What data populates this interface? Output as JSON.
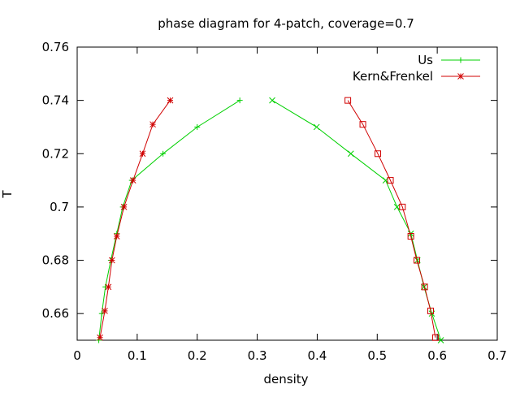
{
  "chart_data": {
    "type": "line",
    "title": "phase diagram for 4-patch, coverage=0.7",
    "xlabel": "density",
    "ylabel": "T",
    "xlim": [
      0,
      0.7
    ],
    "ylim": [
      0.65,
      0.76
    ],
    "x_ticks": [
      "0",
      "0.1",
      "0.2",
      "0.3",
      "0.4",
      "0.5",
      "0.6",
      "0.7"
    ],
    "x_tick_values": [
      0,
      0.1,
      0.2,
      0.3,
      0.4,
      0.5,
      0.6,
      0.7
    ],
    "y_ticks": [
      "0.66",
      "0.68",
      "0.7",
      "0.72",
      "0.74",
      "0.76"
    ],
    "y_tick_values": [
      0.66,
      0.68,
      0.7,
      0.72,
      0.74,
      0.76
    ],
    "grid": false,
    "legend_position": "top-right",
    "series": [
      {
        "name": "Us",
        "color": "#00d000",
        "markers": [
          {
            "symbol": "plus",
            "points": [
              [
                0.036,
                0.65
              ],
              [
                0.041,
                0.66
              ],
              [
                0.047,
                0.67
              ],
              [
                0.056,
                0.68
              ],
              [
                0.066,
                0.69
              ],
              [
                0.076,
                0.7
              ],
              [
                0.091,
                0.71
              ],
              [
                0.143,
                0.72
              ],
              [
                0.2,
                0.73
              ],
              [
                0.271,
                0.74
              ]
            ]
          },
          {
            "symbol": "cross",
            "points": [
              [
                0.325,
                0.74
              ],
              [
                0.399,
                0.73
              ],
              [
                0.456,
                0.72
              ],
              [
                0.514,
                0.71
              ],
              [
                0.533,
                0.7
              ],
              [
                0.556,
                0.69
              ],
              [
                0.567,
                0.68
              ],
              [
                0.578,
                0.67
              ],
              [
                0.591,
                0.66
              ],
              [
                0.606,
                0.65
              ]
            ]
          }
        ],
        "segments": [
          [
            [
              0.036,
              0.65
            ],
            [
              0.041,
              0.66
            ],
            [
              0.047,
              0.67
            ],
            [
              0.056,
              0.68
            ],
            [
              0.066,
              0.69
            ],
            [
              0.076,
              0.7
            ],
            [
              0.091,
              0.71
            ],
            [
              0.143,
              0.72
            ],
            [
              0.2,
              0.73
            ],
            [
              0.271,
              0.74
            ]
          ],
          [
            [
              0.325,
              0.74
            ],
            [
              0.399,
              0.73
            ],
            [
              0.456,
              0.72
            ],
            [
              0.514,
              0.71
            ],
            [
              0.533,
              0.7
            ],
            [
              0.556,
              0.69
            ],
            [
              0.567,
              0.68
            ],
            [
              0.578,
              0.67
            ],
            [
              0.591,
              0.66
            ],
            [
              0.606,
              0.65
            ]
          ]
        ]
      },
      {
        "name": "Kern&Frenkel",
        "color": "#d00000",
        "markers": [
          {
            "symbol": "star",
            "points": [
              [
                0.038,
                0.651
              ],
              [
                0.046,
                0.661
              ],
              [
                0.052,
                0.67
              ],
              [
                0.058,
                0.68
              ],
              [
                0.066,
                0.689
              ],
              [
                0.078,
                0.7
              ],
              [
                0.093,
                0.71
              ],
              [
                0.109,
                0.72
              ],
              [
                0.126,
                0.731
              ],
              [
                0.155,
                0.74
              ]
            ]
          },
          {
            "symbol": "square",
            "points": [
              [
                0.451,
                0.74
              ],
              [
                0.476,
                0.731
              ],
              [
                0.501,
                0.72
              ],
              [
                0.522,
                0.71
              ],
              [
                0.542,
                0.7
              ],
              [
                0.556,
                0.689
              ],
              [
                0.566,
                0.68
              ],
              [
                0.579,
                0.67
              ],
              [
                0.589,
                0.661
              ],
              [
                0.597,
                0.651
              ]
            ]
          }
        ],
        "segments": [
          [
            [
              0.038,
              0.651
            ],
            [
              0.046,
              0.661
            ],
            [
              0.052,
              0.67
            ],
            [
              0.058,
              0.68
            ],
            [
              0.066,
              0.689
            ],
            [
              0.078,
              0.7
            ],
            [
              0.093,
              0.71
            ],
            [
              0.109,
              0.72
            ],
            [
              0.126,
              0.731
            ],
            [
              0.155,
              0.74
            ]
          ],
          [
            [
              0.451,
              0.74
            ],
            [
              0.476,
              0.731
            ],
            [
              0.501,
              0.72
            ],
            [
              0.522,
              0.71
            ],
            [
              0.542,
              0.7
            ],
            [
              0.556,
              0.689
            ],
            [
              0.566,
              0.68
            ],
            [
              0.579,
              0.67
            ],
            [
              0.589,
              0.661
            ],
            [
              0.597,
              0.651
            ]
          ]
        ]
      }
    ]
  }
}
